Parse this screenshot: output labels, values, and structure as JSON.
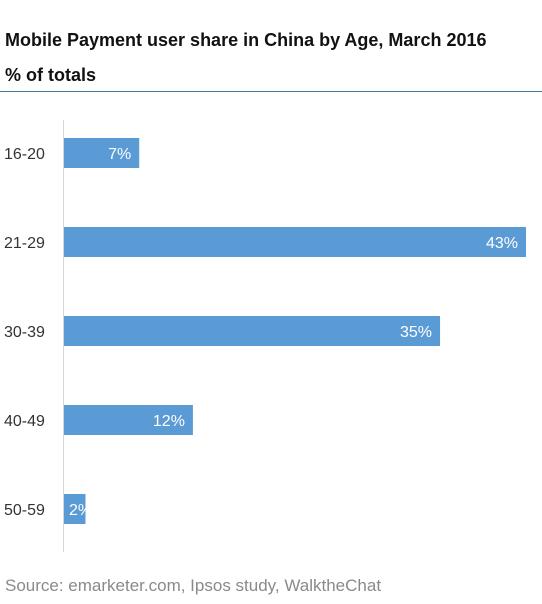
{
  "title": "Mobile Payment user share in China by Age, March 2016",
  "subtitle": "% of totals",
  "source": "Source: emarketer.com, Ipsos study, WalktheChat",
  "chart_data": {
    "type": "bar",
    "orientation": "horizontal",
    "categories": [
      "16-20",
      "21-29",
      "30-39",
      "40-49",
      "50-59"
    ],
    "values": [
      7,
      43,
      35,
      12,
      2
    ],
    "data_labels": [
      "7%",
      "43%",
      "35%",
      "12%",
      "2%"
    ],
    "xlim": [
      0,
      43
    ],
    "grid": false,
    "bar_color": "#5b9bd5",
    "label_color": "#ffffff",
    "category_color": "#333333"
  }
}
